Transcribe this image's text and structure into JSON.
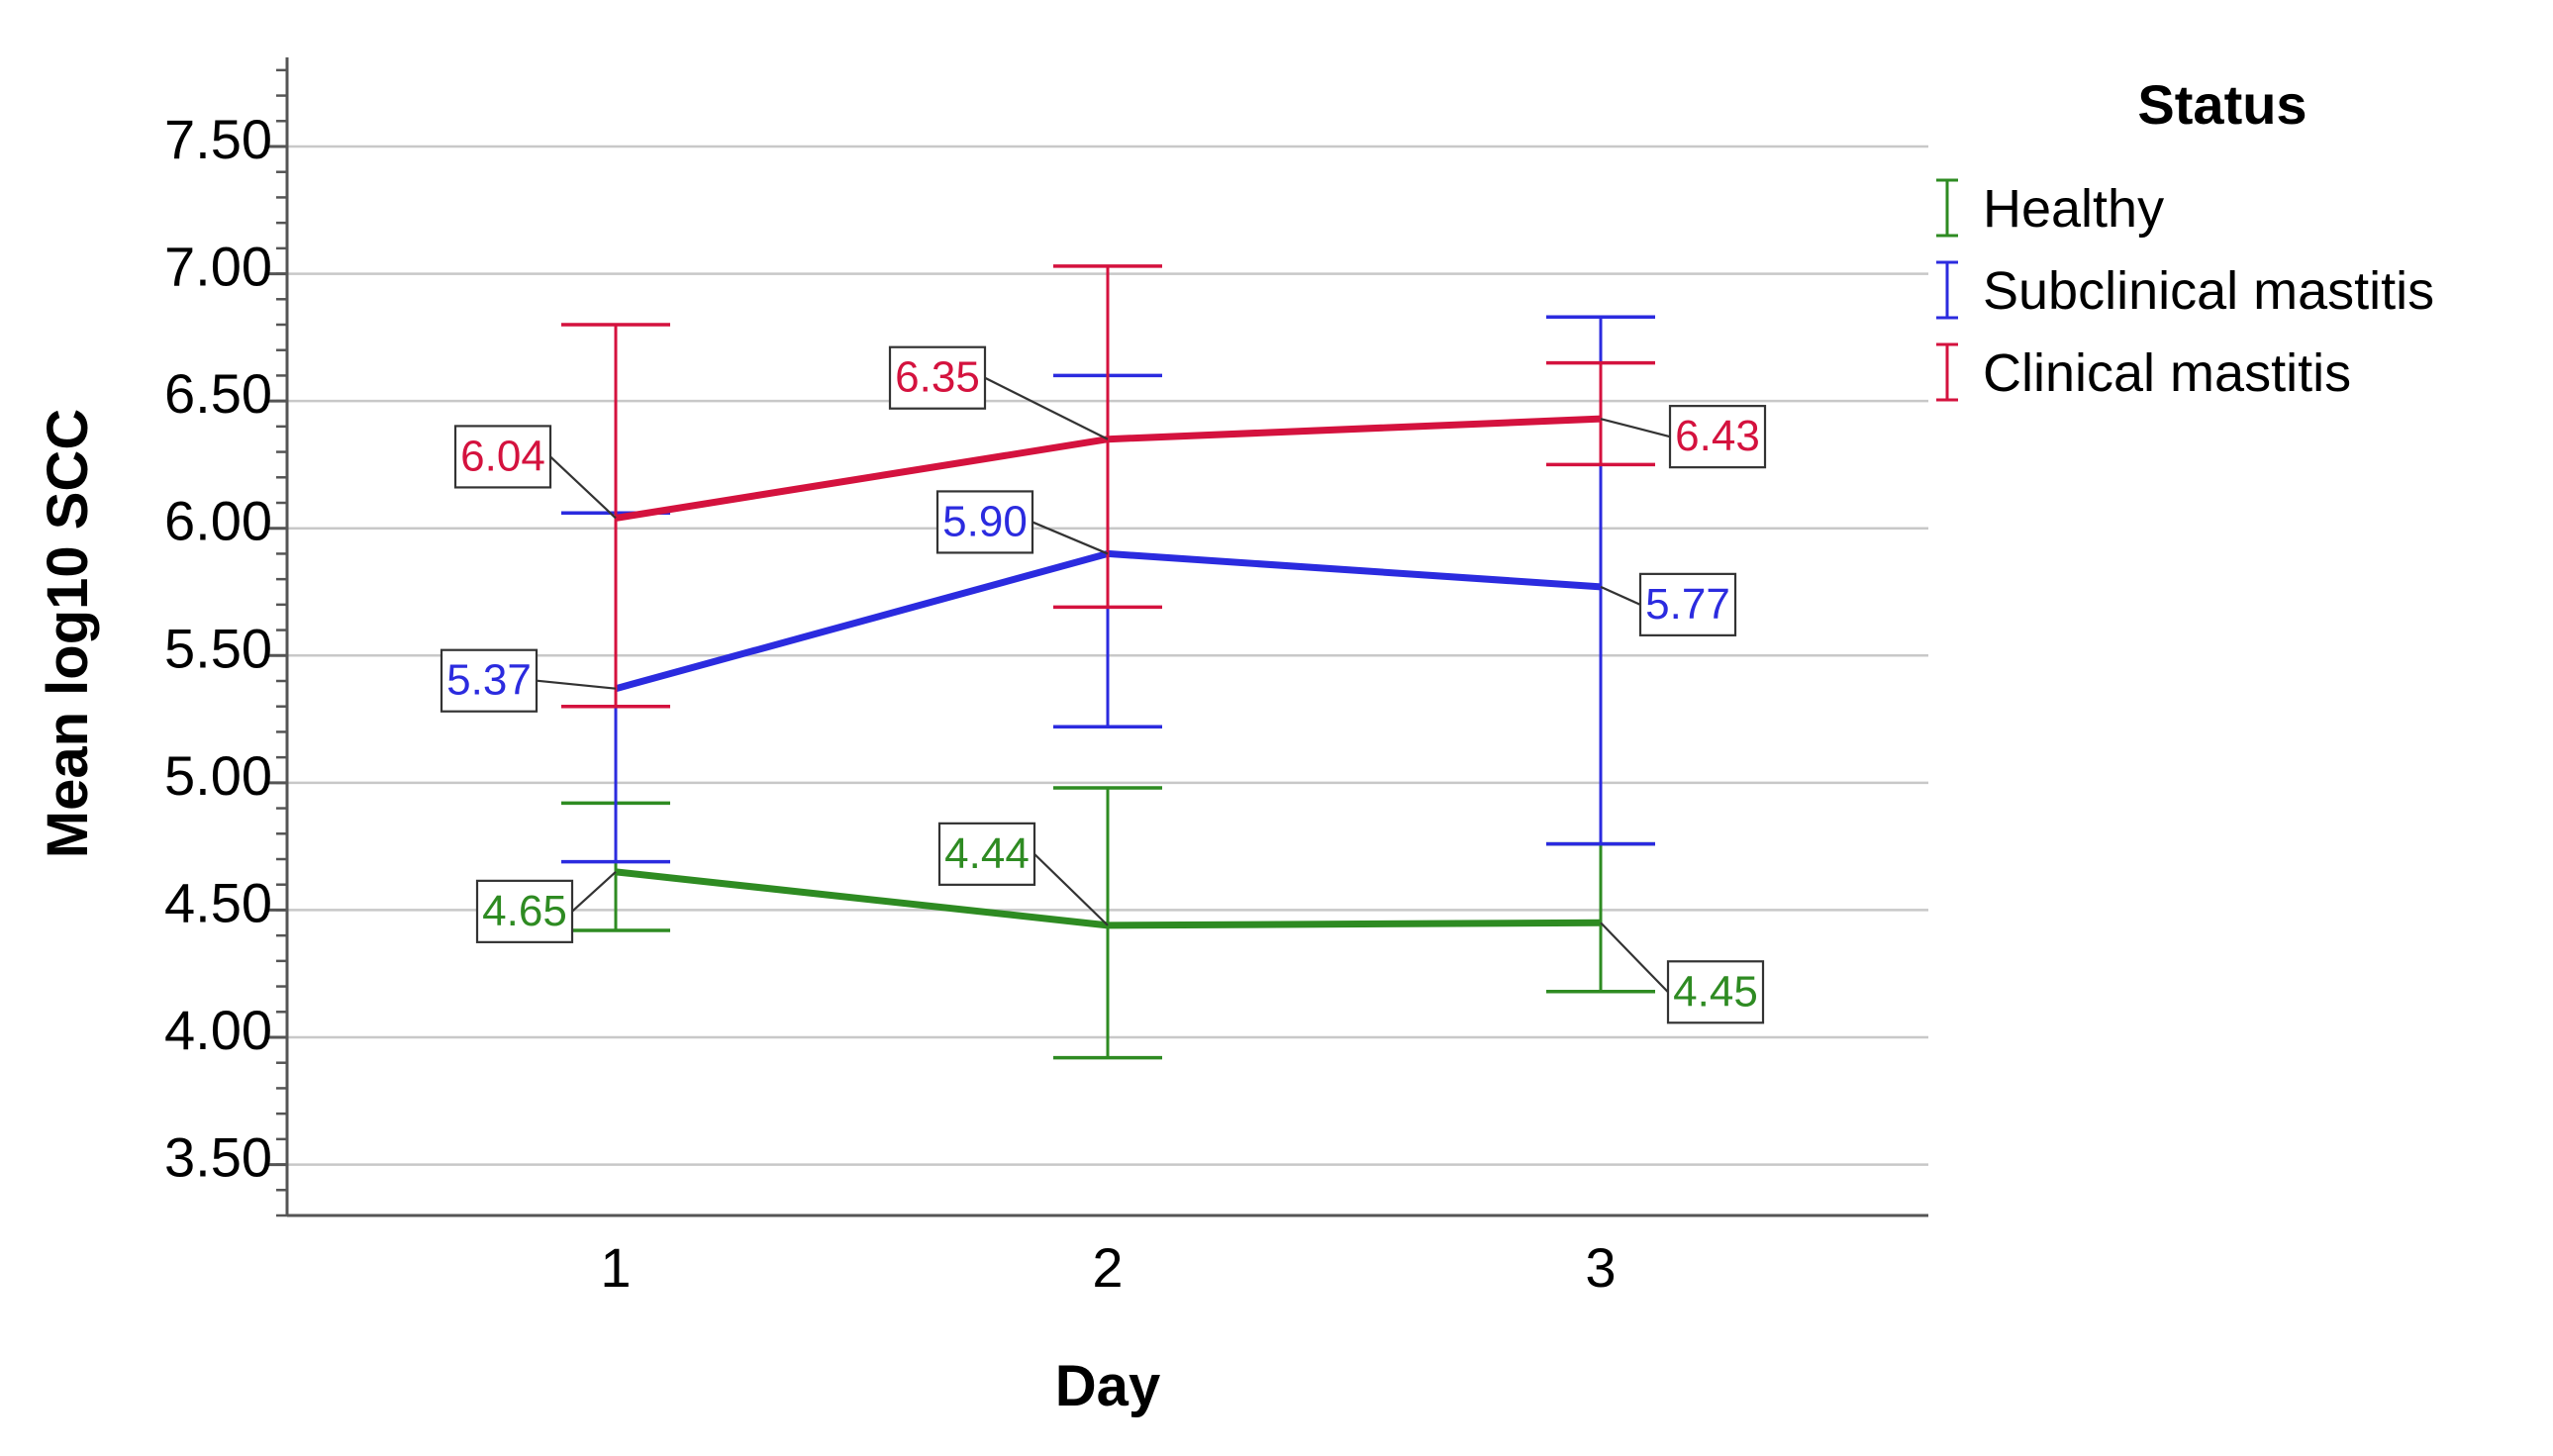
{
  "chart_data": {
    "type": "line",
    "title": "",
    "xlabel": "Day",
    "ylabel": "Mean log10 SCC",
    "categories": [
      "1",
      "2",
      "3"
    ],
    "ylim": [
      3.3,
      7.85
    ],
    "yticks": [
      "3.50",
      "4.00",
      "4.50",
      "5.00",
      "5.50",
      "6.00",
      "6.50",
      "7.00",
      "7.50"
    ],
    "grid": true,
    "error_bars": true,
    "legend": {
      "title": "Status",
      "position": "right"
    },
    "series": [
      {
        "name": "Healthy",
        "color": "#2e8b22",
        "values": [
          4.65,
          4.44,
          4.45
        ],
        "labels": [
          "4.65",
          "4.44",
          "4.45"
        ],
        "ci_low": [
          4.42,
          3.92,
          4.18
        ],
        "ci_high": [
          4.92,
          4.98,
          4.76
        ]
      },
      {
        "name": "Subclinical mastitis",
        "color": "#2b2bdf",
        "values": [
          5.37,
          5.9,
          5.77
        ],
        "labels": [
          "5.37",
          "5.90",
          "5.77"
        ],
        "ci_low": [
          4.69,
          5.22,
          4.76
        ],
        "ci_high": [
          6.06,
          6.6,
          6.83
        ]
      },
      {
        "name": "Clinical mastitis",
        "color": "#d4123e",
        "values": [
          6.04,
          6.35,
          6.43
        ],
        "labels": [
          "6.04",
          "6.35",
          "6.43"
        ],
        "ci_low": [
          5.3,
          5.69,
          6.25
        ],
        "ci_high": [
          6.8,
          7.03,
          6.65
        ]
      }
    ]
  }
}
